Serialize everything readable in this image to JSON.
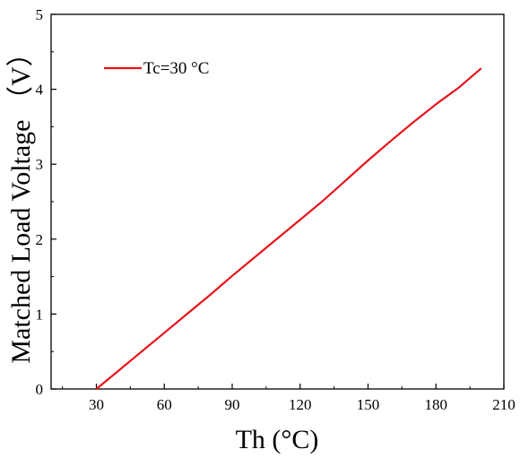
{
  "chart_data": {
    "type": "line",
    "xlabel": "Th (°C)",
    "ylabel": "Matched Load Voltage （V）",
    "xlim": [
      10,
      210
    ],
    "ylim": [
      0,
      5
    ],
    "x_ticks": [
      30,
      60,
      90,
      120,
      150,
      180,
      210
    ],
    "y_ticks": [
      0,
      1,
      2,
      3,
      4,
      5
    ],
    "grid": false,
    "legend_position": "top-left",
    "series": [
      {
        "name": "Tc=30 °C",
        "color": "#e8141b",
        "x": [
          30,
          40,
          50,
          60,
          70,
          80,
          90,
          100,
          110,
          120,
          130,
          140,
          150,
          160,
          170,
          180,
          190,
          200
        ],
        "y": [
          0.0,
          0.25,
          0.5,
          0.75,
          1.0,
          1.25,
          1.51,
          1.76,
          2.01,
          2.26,
          2.51,
          2.78,
          3.05,
          3.31,
          3.56,
          3.8,
          4.02,
          4.28
        ]
      }
    ]
  }
}
